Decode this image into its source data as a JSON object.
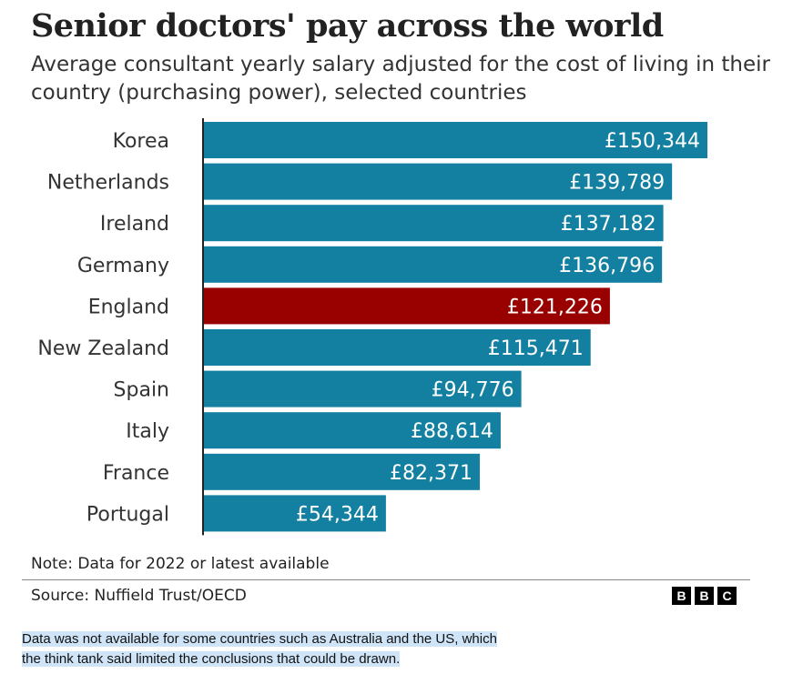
{
  "header": {
    "title": "Senior doctors' pay across the world",
    "subtitle": "Average consultant yearly salary adjusted for the cost of living in their country (purchasing power), selected countries"
  },
  "footer": {
    "note": "Note: Data for 2022 or latest available",
    "source": "Source: Nuffield Trust/OECD",
    "logo_letters": [
      "B",
      "B",
      "C"
    ]
  },
  "caption": {
    "line1": "Data was not available for some countries such as Australia and the US, which",
    "line2": "the think tank said limited the conclusions that could be drawn."
  },
  "colors": {
    "bar": "#1380a1",
    "highlight": "#990000",
    "axis": "#222222"
  },
  "chart_data": {
    "type": "bar",
    "orientation": "horizontal",
    "categories": [
      "Korea",
      "Netherlands",
      "Ireland",
      "Germany",
      "England",
      "New Zealand",
      "Spain",
      "Italy",
      "France",
      "Portugal"
    ],
    "values": [
      150344,
      139789,
      137182,
      136796,
      121226,
      115471,
      94776,
      88614,
      82371,
      54344
    ],
    "value_labels": [
      "£150,344",
      "£139,789",
      "£137,182",
      "£136,796",
      "£121,226",
      "£115,471",
      "£94,776",
      "£88,614",
      "£82,371",
      "£54,344"
    ],
    "highlight": "England",
    "xlim": [
      0,
      150344
    ],
    "grid": false,
    "legend": "none"
  }
}
